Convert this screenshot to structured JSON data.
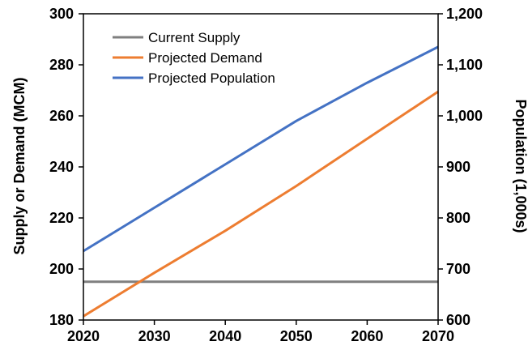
{
  "chart_data": {
    "type": "line",
    "title": "",
    "xlabel": "",
    "ylabel_left": "Supply or Demand (MCM)",
    "ylabel_right": "Population (1,000s)",
    "x": [
      2020,
      2030,
      2040,
      2050,
      2060,
      2070
    ],
    "xlim": [
      2020,
      2070
    ],
    "ylim_left": [
      180,
      300
    ],
    "ylim_right": [
      600,
      1200
    ],
    "x_ticks": [
      "2020",
      "2030",
      "2040",
      "2050",
      "2060",
      "2070"
    ],
    "y_ticks_left": [
      "180",
      "200",
      "220",
      "240",
      "260",
      "280",
      "300"
    ],
    "y_ticks_right": [
      "600",
      "700",
      "800",
      "900",
      "1,000",
      "1,100",
      "1,200"
    ],
    "grid": false,
    "legend_position": "top-left",
    "series": [
      {
        "name": "Current Supply",
        "axis": "left",
        "color": "#7f7f7f",
        "values": [
          195,
          195,
          195,
          195,
          195,
          195
        ]
      },
      {
        "name": "Projected Demand",
        "axis": "left",
        "color": "#ed7d31",
        "values": [
          181.5,
          198.5,
          215,
          232.5,
          251,
          269.5
        ]
      },
      {
        "name": "Projected Population",
        "axis": "right",
        "color": "#4472c4",
        "values": [
          735,
          820,
          905,
          990,
          1065,
          1135
        ]
      }
    ]
  }
}
